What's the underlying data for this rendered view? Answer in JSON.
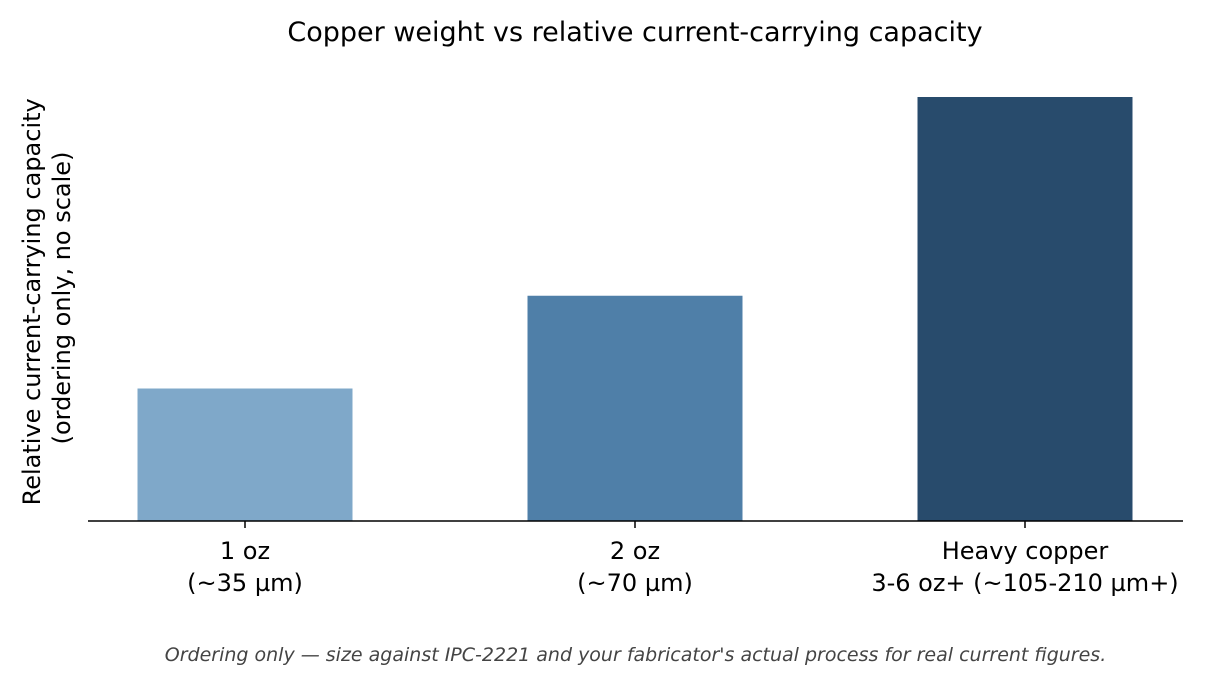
{
  "chart_data": {
    "type": "bar",
    "title": "Copper weight vs relative current-carrying capacity",
    "ylabel": [
      "Relative current-carrying capacity",
      "(ordering only, no scale)"
    ],
    "xlabel": "",
    "categories": [
      [
        "1 oz",
        "(~35 µm)"
      ],
      [
        "2 oz",
        "(~70 µm)"
      ],
      [
        "Heavy copper",
        "3-6 oz+ (~105-210 µm+)"
      ]
    ],
    "values": [
      1,
      1.7,
      3.2
    ],
    "ylim": [
      0,
      3.35
    ],
    "colors": [
      "#7fa8c9",
      "#4f7fa8",
      "#284b6c"
    ],
    "y_ticks": "hidden",
    "grid": false,
    "legend": "none"
  },
  "footnote": "Ordering only — size against IPC-2221 and your fabricator's actual process for real current figures."
}
